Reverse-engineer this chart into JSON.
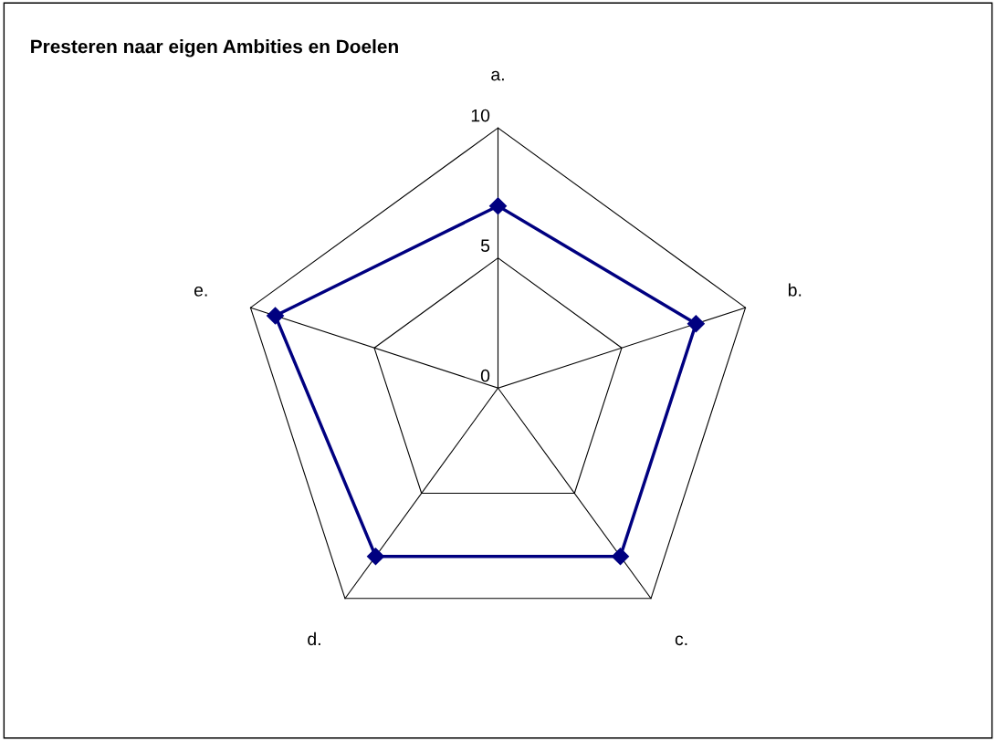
{
  "chart_data": {
    "type": "radar",
    "title": "Presteren naar eigen Ambities en Doelen",
    "categories": [
      "a.",
      "b.",
      "c.",
      "d.",
      "e."
    ],
    "series": [
      {
        "color": "#000080",
        "values": [
          7,
          8,
          8,
          8,
          9
        ]
      }
    ],
    "ylim": [
      0,
      10
    ],
    "yticks": [
      0,
      5,
      10
    ],
    "marker": "diamond",
    "line_style": "solid",
    "grid": true,
    "legend": false
  }
}
